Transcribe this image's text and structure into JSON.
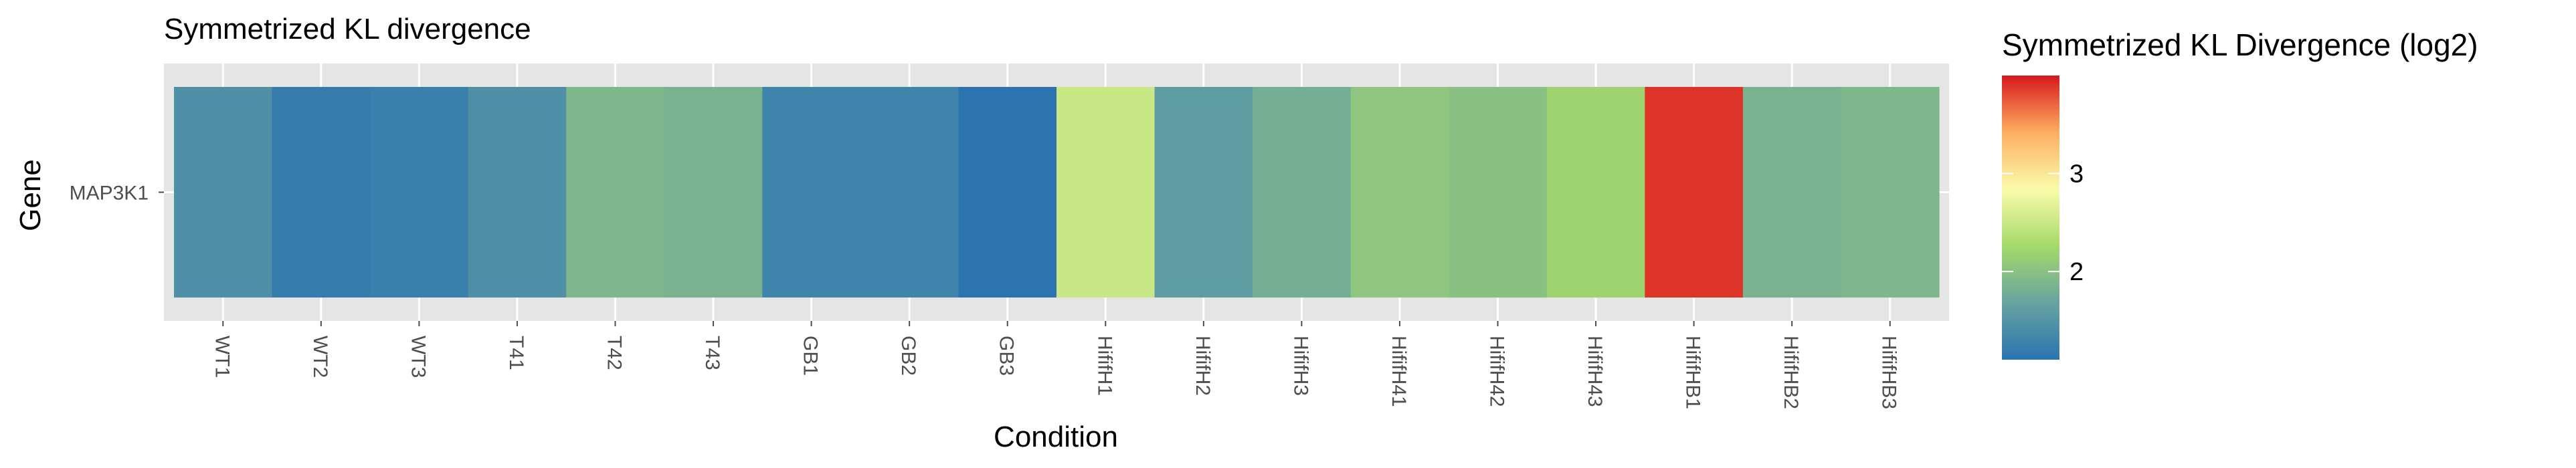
{
  "chart_data": {
    "type": "heatmap",
    "title": "Symmetrized KL divergence",
    "xlabel": "Condition",
    "ylabel": "Gene",
    "rows": [
      "MAP3K1"
    ],
    "categories": [
      "WT1",
      "WT2",
      "WT3",
      "T41",
      "T42",
      "T43",
      "GB1",
      "GB2",
      "GB3",
      "HififH1",
      "HififH2",
      "HififH3",
      "HififH41",
      "HififH42",
      "HififH43",
      "HififHB1",
      "HififHB2",
      "HififHB3"
    ],
    "values": [
      [
        1.45,
        1.2,
        1.25,
        1.45,
        1.9,
        1.85,
        1.3,
        1.3,
        1.1,
        2.5,
        1.6,
        1.8,
        2.05,
        2.0,
        2.2,
        3.9,
        1.85,
        1.9
      ]
    ],
    "legend": {
      "title": "Symmetrized KL Divergence (log2)",
      "range": [
        1.1,
        4.0
      ],
      "ticks": [
        2,
        3
      ],
      "position": "right",
      "colors": [
        "#2B74B0",
        "#66A3A0",
        "#A6D96A",
        "#F9FCAB",
        "#FDAE61",
        "#D7191C"
      ]
    },
    "grid": true,
    "panel_background": "#E5E5E5"
  }
}
